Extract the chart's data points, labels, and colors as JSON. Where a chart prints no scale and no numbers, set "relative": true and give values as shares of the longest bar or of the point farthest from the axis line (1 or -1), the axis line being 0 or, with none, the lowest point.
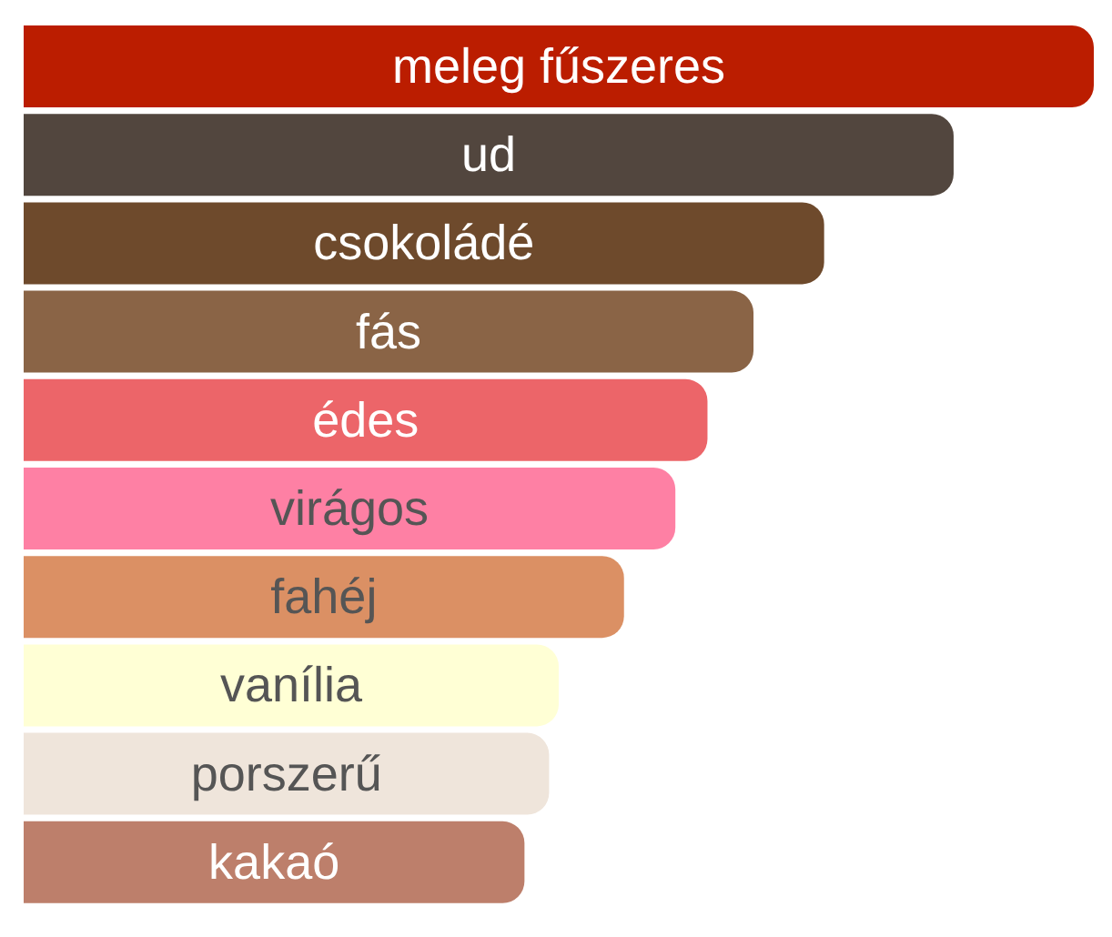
{
  "chart_data": {
    "type": "bar",
    "orientation": "horizontal",
    "relative": true,
    "categories": [
      "meleg fűszeres",
      "ud",
      "csokoládé",
      "fás",
      "édes",
      "virágos",
      "fahéj",
      "vanília",
      "porszerű",
      "kakaó"
    ],
    "values": [
      1,
      0.869,
      0.748,
      0.682,
      0.639,
      0.609,
      0.561,
      0.5,
      0.491,
      0.468
    ],
    "colors": [
      "#bb1d00",
      "#52463e",
      "#6e4a2c",
      "#8a6446",
      "#ec6569",
      "#fe80a4",
      "#db9064",
      "#ffffd5",
      "#efe5db",
      "#bd7f6b"
    ]
  }
}
